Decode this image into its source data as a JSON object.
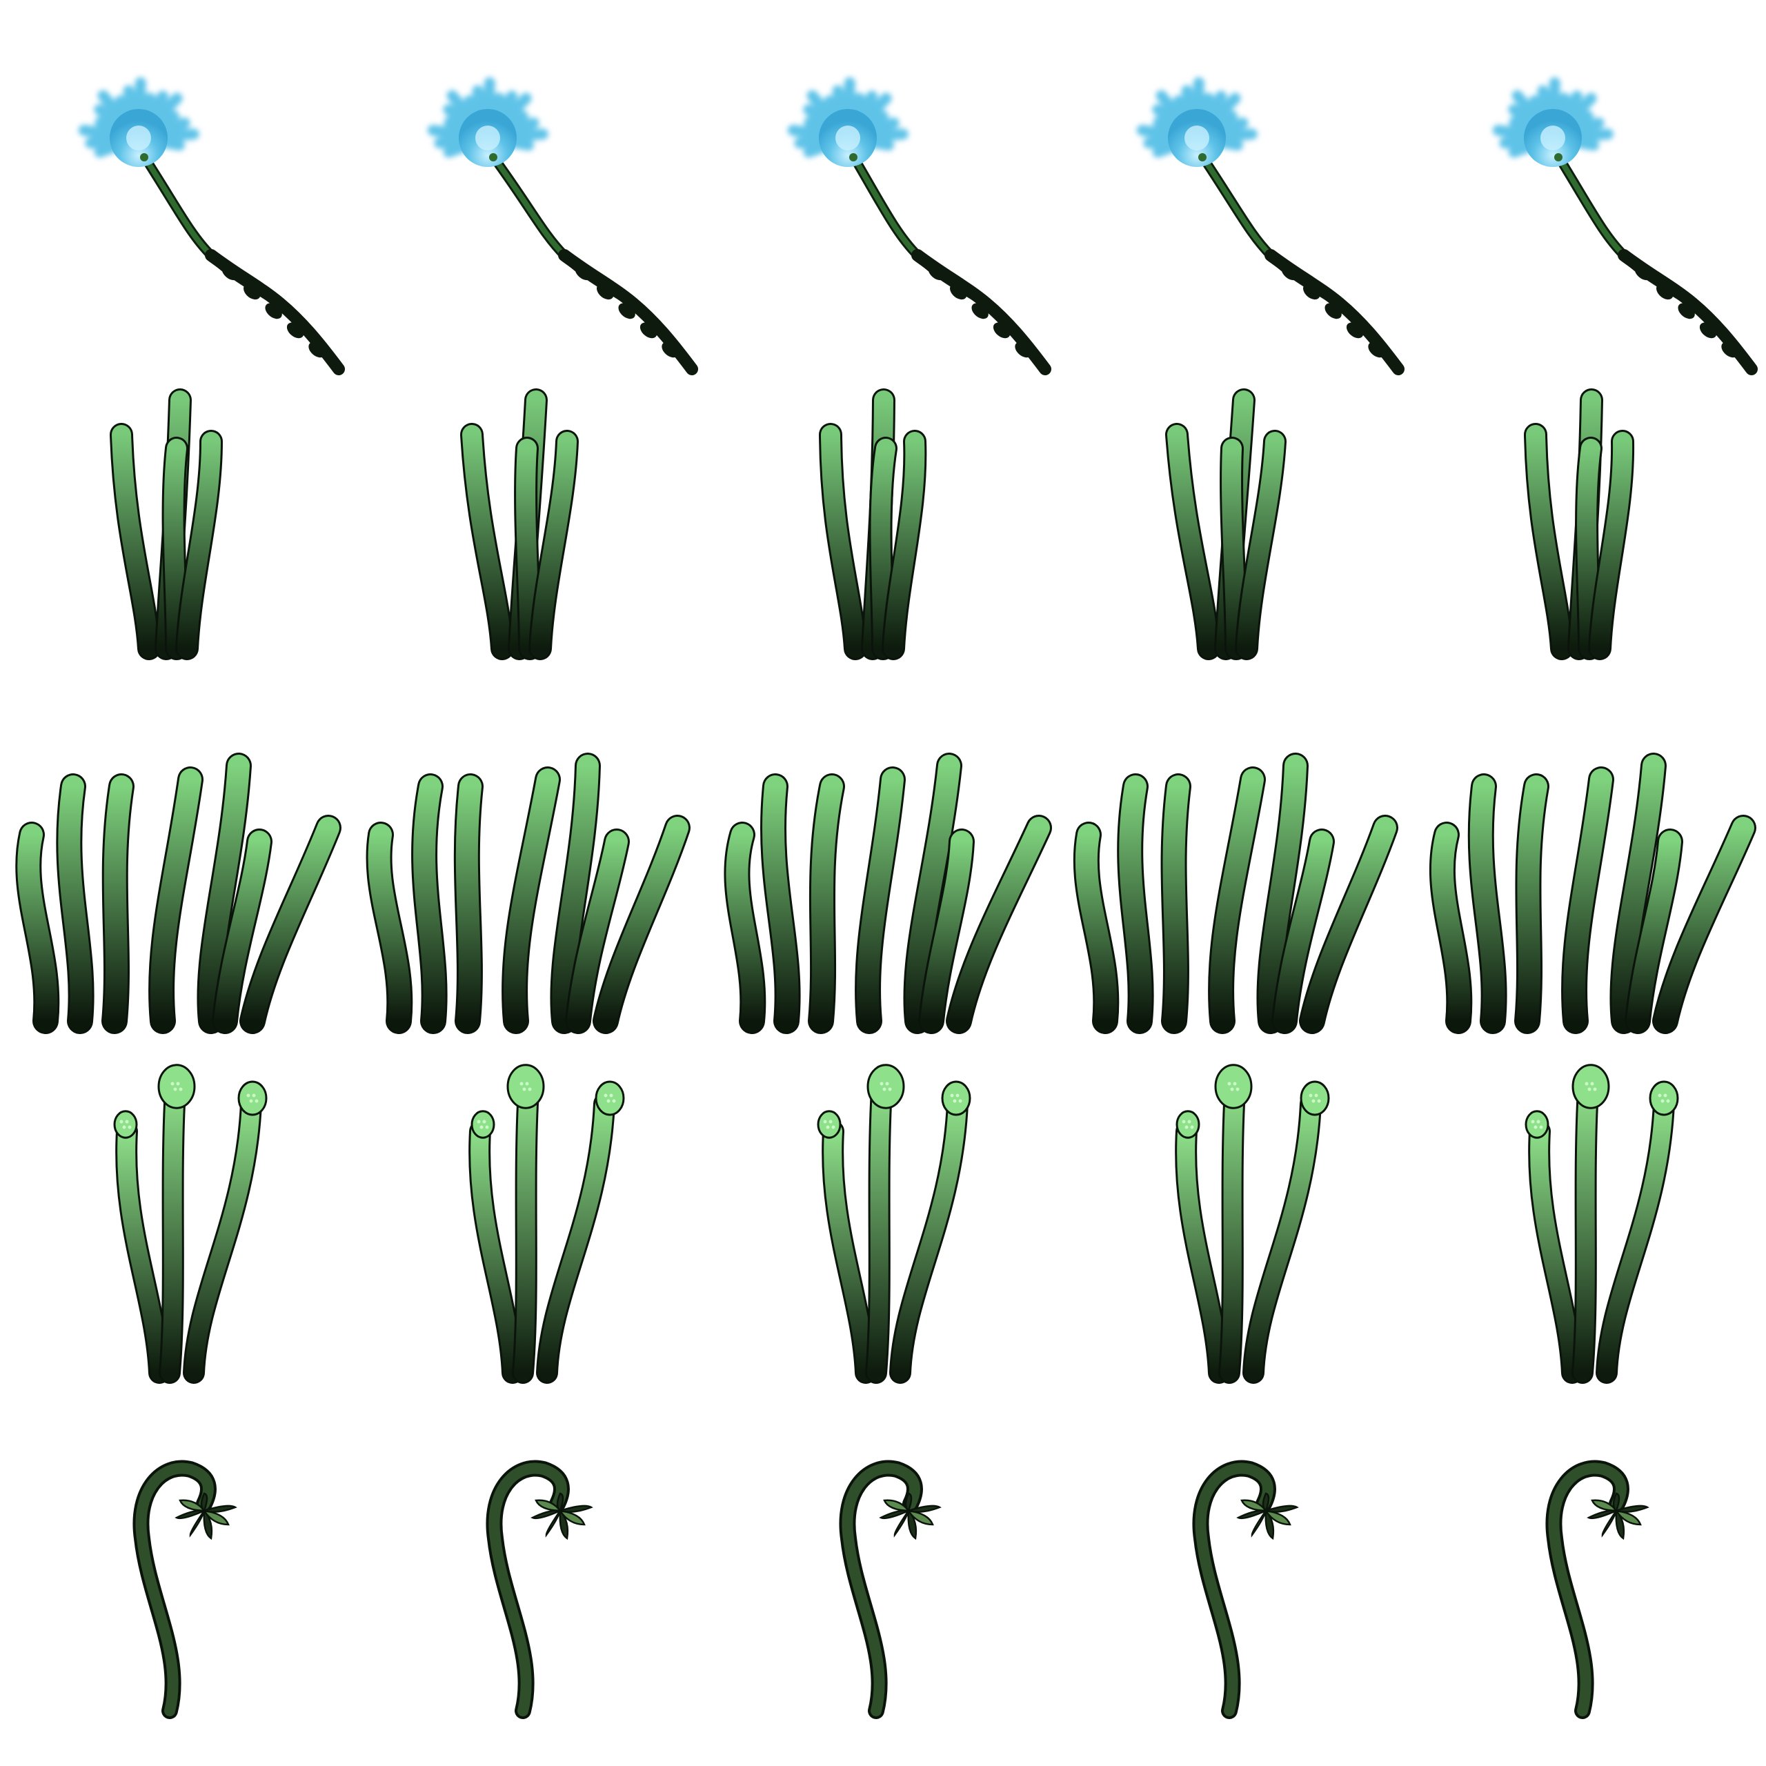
{
  "sprite_sheet": {
    "background": "#ffffff",
    "columns": 5,
    "rows": [
      {
        "name": "blue-puffball-flower",
        "frame_count": 5,
        "colors": {
          "petal": "#5fc3e8",
          "petal_light": "#c8f0ff",
          "stem": "#2f6b2f",
          "root": "#0e1a0e"
        }
      },
      {
        "name": "grass-tuft-small",
        "frame_count": 5,
        "colors": {
          "tip": "#79c97a",
          "base": "#0d1a0d",
          "outline": "#0b140b"
        }
      },
      {
        "name": "grass-tuft-large",
        "frame_count": 5,
        "colors": {
          "tip": "#7fd27e",
          "base": "#0c170c",
          "outline": "#0b140b"
        }
      },
      {
        "name": "bulb-tendrils",
        "frame_count": 5,
        "colors": {
          "bulb": "#8ee08a",
          "base": "#0d1a0d",
          "outline": "#0b140b"
        }
      },
      {
        "name": "curled-sprout",
        "frame_count": 5,
        "colors": {
          "stem": "#2e4f2a",
          "leaf": "#5c8a4e",
          "leaf_dark": "#1c3019",
          "outline": "#0b140b"
        }
      }
    ]
  }
}
